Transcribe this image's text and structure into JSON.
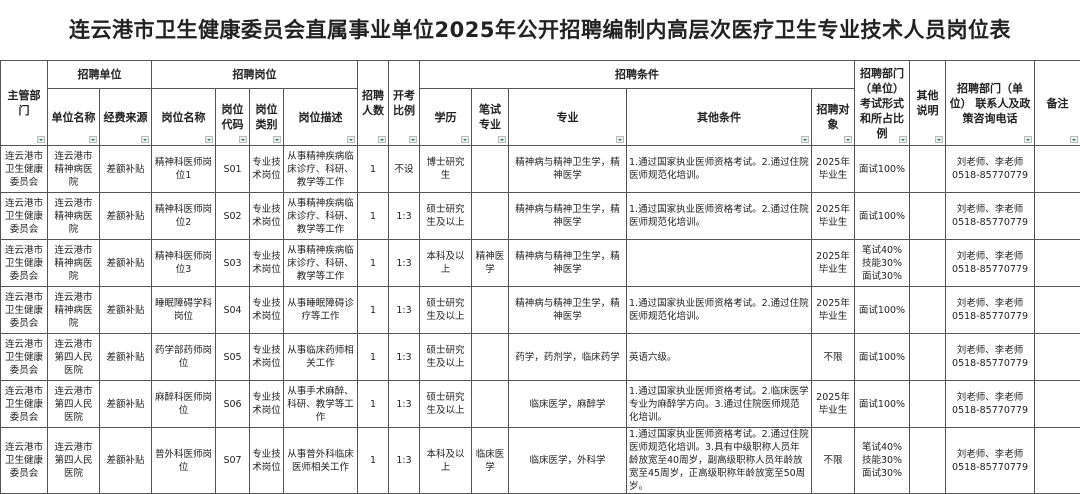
{
  "title": "连云港市卫生健康委员会直属事业单位2025年公开招聘编制内高层次医疗卫生专业技术人员岗位表",
  "headers": {
    "dept": "主管部门",
    "unit_group": "招聘单位",
    "unit_name": "单位名称",
    "funding": "经费来源",
    "post_group": "招聘岗位",
    "post_name": "岗位名称",
    "post_code": "岗位代码",
    "post_type": "岗位类别",
    "post_desc": "岗位描述",
    "count": "招聘人数",
    "ratio": "开考比例",
    "cond_group": "招聘条件",
    "education": "学历",
    "exam_major": "笔试专业",
    "major": "专业",
    "other": "其他条件",
    "target": "招聘对象",
    "exam_form": "招聘部门（单位）考试形式和所占比例",
    "other_note": "其他说明",
    "contact": "招聘部门（单位） 联系人及政策咨询电话",
    "remark": "备注"
  },
  "rows": [
    {
      "dept": "连云港市卫生健康委员会",
      "unit": "连云港市精神病医院",
      "funding": "差额补贴",
      "post": "精神科医师岗位1",
      "code": "S01",
      "type": "专业技术岗位",
      "desc": "从事精神疾病临床诊疗、科研、教学等工作",
      "count": "1",
      "ratio": "不设",
      "edu": "博士研究生",
      "exam_major": "",
      "major": "精神病与精神卫生学，精神医学",
      "other": "1.通过国家执业医师资格考试。2.通过住院医师规范化培训。",
      "target": "2025年毕业生",
      "exam": "面试100%",
      "note": "",
      "contact": "刘老师、李老师 0518-85770779",
      "remark": ""
    },
    {
      "dept": "连云港市卫生健康委员会",
      "unit": "连云港市精神病医院",
      "funding": "差额补贴",
      "post": "精神科医师岗位2",
      "code": "S02",
      "type": "专业技术岗位",
      "desc": "从事精神疾病临床诊疗、科研、教学等工作",
      "count": "1",
      "ratio": "1:3",
      "edu": "硕士研究生及以上",
      "exam_major": "",
      "major": "精神病与精神卫生学，精神医学",
      "other": "1.通过国家执业医师资格考试。2.通过住院医师规范化培训。",
      "target": "2025年毕业生",
      "exam": "面试100%",
      "note": "",
      "contact": "刘老师、李老师 0518-85770779",
      "remark": ""
    },
    {
      "dept": "连云港市卫生健康委员会",
      "unit": "连云港市精神病医院",
      "funding": "差额补贴",
      "post": "精神科医师岗位3",
      "code": "S03",
      "type": "专业技术岗位",
      "desc": "从事精神疾病临床诊疗、科研、教学等工作",
      "count": "1",
      "ratio": "1:3",
      "edu": "本科及以上",
      "exam_major": "精神医学",
      "major": "精神病与精神卫生学，精神医学",
      "other": "",
      "target": "2025年毕业生",
      "exam": "笔试40% 技能30% 面试30%",
      "note": "",
      "contact": "刘老师、李老师 0518-85770779",
      "remark": ""
    },
    {
      "dept": "连云港市卫生健康委员会",
      "unit": "连云港市精神病医院",
      "funding": "差额补贴",
      "post": "睡眠障碍学科岗位",
      "code": "S04",
      "type": "专业技术岗位",
      "desc": "从事睡眠障碍诊疗等工作",
      "count": "1",
      "ratio": "1:3",
      "edu": "硕士研究生及以上",
      "exam_major": "",
      "major": "精神病与精神卫生学，精神医学",
      "other": "1.通过国家执业医师资格考试。2.通过住院医师规范化培训。",
      "target": "2025年毕业生",
      "exam": "面试100%",
      "note": "",
      "contact": "刘老师、李老师 0518-85770779",
      "remark": ""
    },
    {
      "dept": "连云港市卫生健康委员会",
      "unit": "连云港市第四人民医院",
      "funding": "差额补贴",
      "post": "药学部药师岗位",
      "code": "S05",
      "type": "专业技术岗位",
      "desc": "从事临床药师相关工作",
      "count": "1",
      "ratio": "1:3",
      "edu": "硕士研究生及以上",
      "exam_major": "",
      "major": "药学，药剂学，临床药学",
      "other": "英语六级。",
      "target": "不限",
      "exam": "面试100%",
      "note": "",
      "contact": "刘老师、李老师 0518-85770779",
      "remark": ""
    },
    {
      "dept": "连云港市卫生健康委员会",
      "unit": "连云港市第四人民医院",
      "funding": "差额补贴",
      "post": "麻醉科医师岗位",
      "code": "S06",
      "type": "专业技术岗位",
      "desc": "从事手术麻醉、科研、教学等工作",
      "count": "1",
      "ratio": "1:3",
      "edu": "硕士研究生及以上",
      "exam_major": "",
      "major": "临床医学，麻醉学",
      "other": "1.通过国家执业医师资格考试。2.临床医学专业为麻醉学方向。3.通过住院医师规范化培训。",
      "target": "2025年毕业生",
      "exam": "面试100%",
      "note": "",
      "contact": "刘老师、李老师 0518-85770779",
      "remark": ""
    },
    {
      "dept": "连云港市卫生健康委员会",
      "unit": "连云港市第四人民医院",
      "funding": "差额补贴",
      "post": "普外科医师岗位",
      "code": "S07",
      "type": "专业技术岗位",
      "desc": "从事普外科临床医师相关工作",
      "count": "1",
      "ratio": "1:3",
      "edu": "本科及以上",
      "exam_major": "临床医学",
      "major": "临床医学，外科学",
      "other": "1.通过国家执业医师资格考试。2.通过住院医师规范化培训。3.具有中级职称人员年龄放宽至40周岁，副高级职称人员年龄放宽至45周岁，正高级职称年龄放宽至50周岁。",
      "target": "不限",
      "exam": "笔试40% 技能30% 面试30%",
      "note": "",
      "contact": "刘老师、李老师 0518-85770779",
      "remark": ""
    }
  ]
}
